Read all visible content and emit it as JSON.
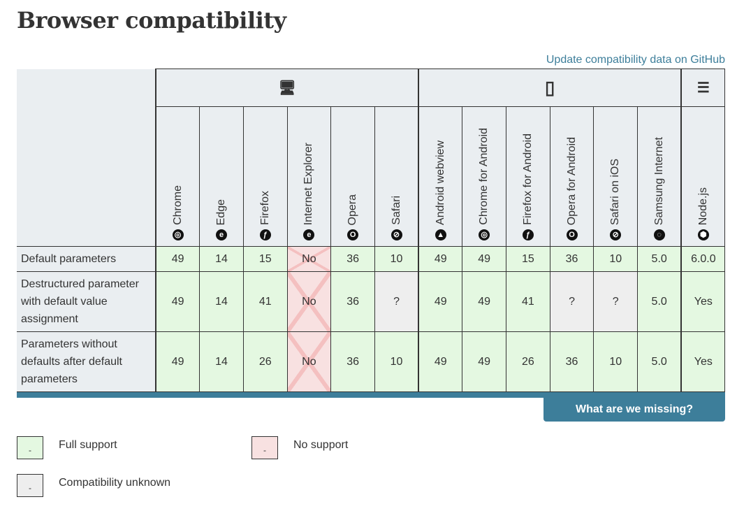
{
  "title": "Browser compatibility",
  "github_link": "Update compatibility data on GitHub",
  "groups": [
    {
      "icon": "desktop-icon",
      "span": 6
    },
    {
      "icon": "mobile-icon",
      "span": 6
    },
    {
      "icon": "server-icon",
      "span": 1
    }
  ],
  "browsers": [
    {
      "name": "Chrome",
      "icon": "chrome-icon"
    },
    {
      "name": "Edge",
      "icon": "edge-icon"
    },
    {
      "name": "Firefox",
      "icon": "firefox-icon"
    },
    {
      "name": "Internet Explorer",
      "icon": "ie-icon"
    },
    {
      "name": "Opera",
      "icon": "opera-icon"
    },
    {
      "name": "Safari",
      "icon": "safari-icon"
    },
    {
      "name": "Android webview",
      "icon": "android-icon"
    },
    {
      "name": "Chrome for Android",
      "icon": "chrome-icon"
    },
    {
      "name": "Firefox for Android",
      "icon": "firefox-icon"
    },
    {
      "name": "Opera for Android",
      "icon": "opera-icon"
    },
    {
      "name": "Safari on iOS",
      "icon": "safari-icon"
    },
    {
      "name": "Samsung Internet",
      "icon": "samsung-icon"
    },
    {
      "name": "Node.js",
      "icon": "nodejs-icon"
    }
  ],
  "rows": [
    {
      "feature": "Default parameters",
      "cells": [
        [
          "49",
          "y"
        ],
        [
          "14",
          "y"
        ],
        [
          "15",
          "y"
        ],
        [
          "No",
          "n"
        ],
        [
          "36",
          "y"
        ],
        [
          "10",
          "y"
        ],
        [
          "49",
          "y"
        ],
        [
          "49",
          "y"
        ],
        [
          "15",
          "y"
        ],
        [
          "36",
          "y"
        ],
        [
          "10",
          "y"
        ],
        [
          "5.0",
          "y"
        ],
        [
          "6.0.0",
          "y"
        ]
      ]
    },
    {
      "feature": "Destructured parameter with default value assignment",
      "cells": [
        [
          "49",
          "y"
        ],
        [
          "14",
          "y"
        ],
        [
          "41",
          "y"
        ],
        [
          "No",
          "n"
        ],
        [
          "36",
          "y"
        ],
        [
          "?",
          "u"
        ],
        [
          "49",
          "y"
        ],
        [
          "49",
          "y"
        ],
        [
          "41",
          "y"
        ],
        [
          "?",
          "u"
        ],
        [
          "?",
          "u"
        ],
        [
          "5.0",
          "y"
        ],
        [
          "Yes",
          "y"
        ]
      ]
    },
    {
      "feature": "Parameters without defaults after default parameters",
      "cells": [
        [
          "49",
          "y"
        ],
        [
          "14",
          "y"
        ],
        [
          "26",
          "y"
        ],
        [
          "No",
          "n"
        ],
        [
          "36",
          "y"
        ],
        [
          "10",
          "y"
        ],
        [
          "49",
          "y"
        ],
        [
          "49",
          "y"
        ],
        [
          "26",
          "y"
        ],
        [
          "36",
          "y"
        ],
        [
          "10",
          "y"
        ],
        [
          "5.0",
          "y"
        ],
        [
          "Yes",
          "y"
        ]
      ]
    }
  ],
  "missing_button": "What are we missing?",
  "legend": [
    {
      "label": "Full support",
      "mark": "-",
      "color": "#e4f8e1"
    },
    {
      "label": "No support",
      "mark": "-",
      "color": "#f8e1e1"
    },
    {
      "label": "Compatibility unknown",
      "mark": "-",
      "color": "#eeeeee"
    }
  ],
  "colors": {
    "accent": "#3d7e9a",
    "full": "#e4f8e1",
    "none": "#f8e1e1",
    "unknown": "#eeeeee"
  }
}
